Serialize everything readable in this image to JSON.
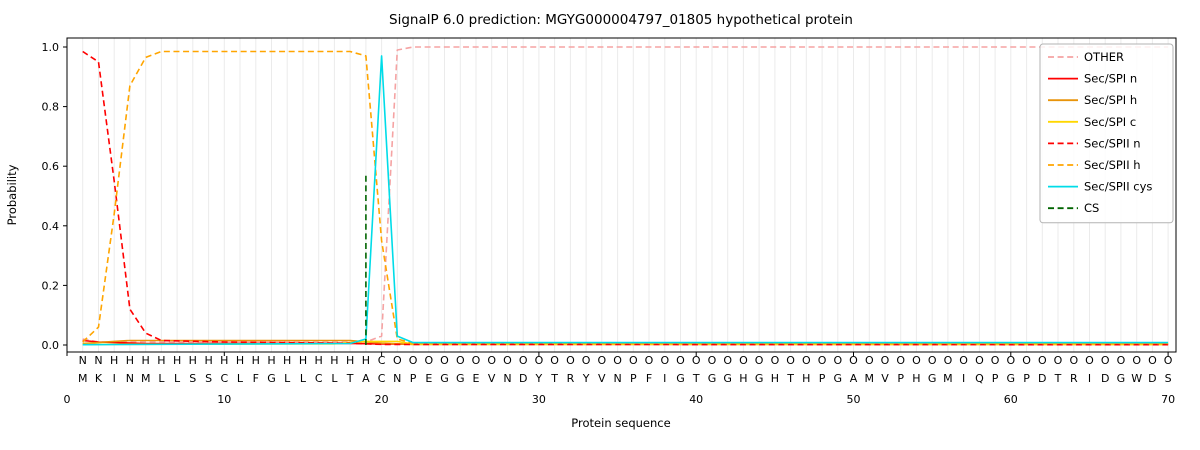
{
  "chart_data": {
    "type": "line",
    "title": "SignalP 6.0 prediction: MGYG000004797_01805 hypothetical protein",
    "xlabel": "Protein sequence",
    "ylabel": "Probability",
    "xlim": [
      0,
      70.5
    ],
    "ylim": [
      -0.02,
      1.03
    ],
    "xticks": [
      0,
      10,
      20,
      30,
      40,
      50,
      60,
      70
    ],
    "yticks": [
      0.0,
      0.2,
      0.4,
      0.6,
      0.8,
      1.0
    ],
    "grid": "vertical-line-per-residue",
    "legend_position": "upper right",
    "series": [
      {
        "name": "OTHER",
        "color": "#f5a3a3",
        "dash": true,
        "points": [
          [
            1,
            0.02
          ],
          [
            2,
            0.01
          ],
          [
            19,
            0.01
          ],
          [
            20,
            0.03
          ],
          [
            21,
            0.99
          ],
          [
            22,
            1.0
          ],
          [
            70,
            1.0
          ]
        ]
      },
      {
        "name": "Sec/SPI n",
        "color": "#ff0000",
        "dash": false,
        "points": [
          [
            1,
            0.015
          ],
          [
            2,
            0.01
          ],
          [
            5,
            0.005
          ],
          [
            18,
            0.005
          ],
          [
            21,
            0.003
          ],
          [
            70,
            0.003
          ]
        ]
      },
      {
        "name": "Sec/SPI h",
        "color": "#e8940a",
        "dash": false,
        "points": [
          [
            1,
            0.005
          ],
          [
            3,
            0.012
          ],
          [
            4,
            0.015
          ],
          [
            18,
            0.015
          ],
          [
            20,
            0.006
          ],
          [
            22,
            0.002
          ],
          [
            70,
            0.002
          ]
        ]
      },
      {
        "name": "Sec/SPI c",
        "color": "#ffd700",
        "dash": false,
        "points": [
          [
            1,
            0.002
          ],
          [
            17,
            0.004
          ],
          [
            19,
            0.012
          ],
          [
            21,
            0.012
          ],
          [
            22,
            0.003
          ],
          [
            70,
            0.002
          ]
        ]
      },
      {
        "name": "Sec/SPII n",
        "color": "#ff0000",
        "dash": true,
        "points": [
          [
            1,
            0.985
          ],
          [
            2,
            0.95
          ],
          [
            3,
            0.55
          ],
          [
            4,
            0.12
          ],
          [
            5,
            0.04
          ],
          [
            6,
            0.015
          ],
          [
            10,
            0.01
          ],
          [
            18,
            0.006
          ],
          [
            20,
            0.002
          ],
          [
            70,
            0.001
          ]
        ]
      },
      {
        "name": "Sec/SPII h",
        "color": "#ffa500",
        "dash": true,
        "points": [
          [
            1,
            0.01
          ],
          [
            2,
            0.06
          ],
          [
            3,
            0.44
          ],
          [
            4,
            0.87
          ],
          [
            5,
            0.965
          ],
          [
            6,
            0.985
          ],
          [
            18,
            0.985
          ],
          [
            19,
            0.97
          ],
          [
            20,
            0.35
          ],
          [
            21,
            0.02
          ],
          [
            22,
            0.006
          ],
          [
            70,
            0.005
          ]
        ]
      },
      {
        "name": "Sec/SPII cys",
        "color": "#00dce8",
        "dash": false,
        "points": [
          [
            1,
            0.001
          ],
          [
            18,
            0.005
          ],
          [
            19,
            0.02
          ],
          [
            20,
            0.97
          ],
          [
            21,
            0.03
          ],
          [
            22,
            0.008
          ],
          [
            70,
            0.008
          ]
        ]
      }
    ],
    "cs_marker": {
      "name": "CS",
      "x": 19,
      "top": 0.58,
      "color": "#006400",
      "dash": true
    },
    "annotation_row": "NNHHHHHHHHHHHHHHHHHCOOOOOOOOOOOOOOOOOOOOOOOOOOOOOOOOOOOOOOOOOOOOOOOOOO",
    "annotation_colors": {
      "N": "#ff0000",
      "H": "#ffa500",
      "C": "#00c5d4",
      "O": "#8c8c8c"
    },
    "sequence": "MKINMLLSSCLFGLLCLTACNPEGGEVNDYTRYVNPFIGTGGHGHTHPGAMVPHGMIQPGPDTRIDGWDS"
  }
}
